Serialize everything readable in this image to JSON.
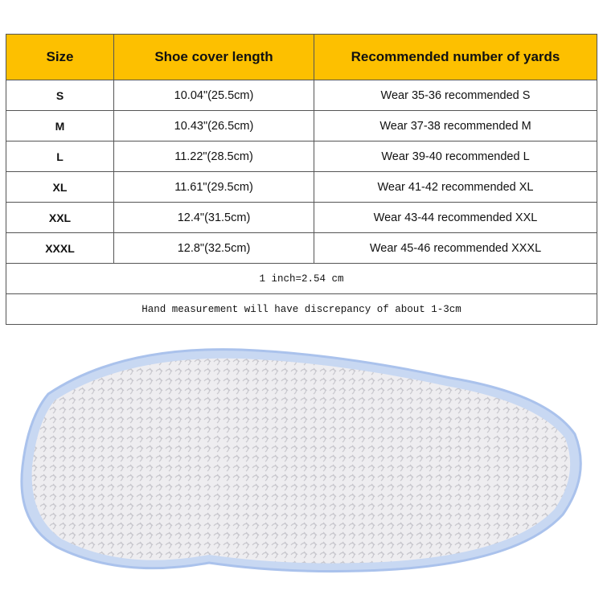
{
  "table": {
    "headers": [
      "Size",
      "Shoe cover length",
      "Recommended number of yards"
    ],
    "rows": [
      {
        "size": "S",
        "length": "10.04\"(25.5cm)",
        "rec": "Wear 35-36 recommended S"
      },
      {
        "size": "M",
        "length": "10.43\"(26.5cm)",
        "rec": "Wear 37-38 recommended M"
      },
      {
        "size": "L",
        "length": "11.22\"(28.5cm)",
        "rec": "Wear 39-40 recommended L"
      },
      {
        "size": "XL",
        "length": "11.61\"(29.5cm)",
        "rec": "Wear 41-42 recommended XL"
      },
      {
        "size": "XXL",
        "length": "12.4\"(31.5cm)",
        "rec": "Wear 43-44 recommended XXL"
      },
      {
        "size": "XXXL",
        "length": "12.8\"(32.5cm)",
        "rec": "Wear 45-46 recommended XXXL"
      }
    ],
    "notes": [
      "1 inch=2.54 cm",
      "Hand measurement will have discrepancy of about 1-3cm"
    ],
    "header_color": "#fdc000"
  }
}
